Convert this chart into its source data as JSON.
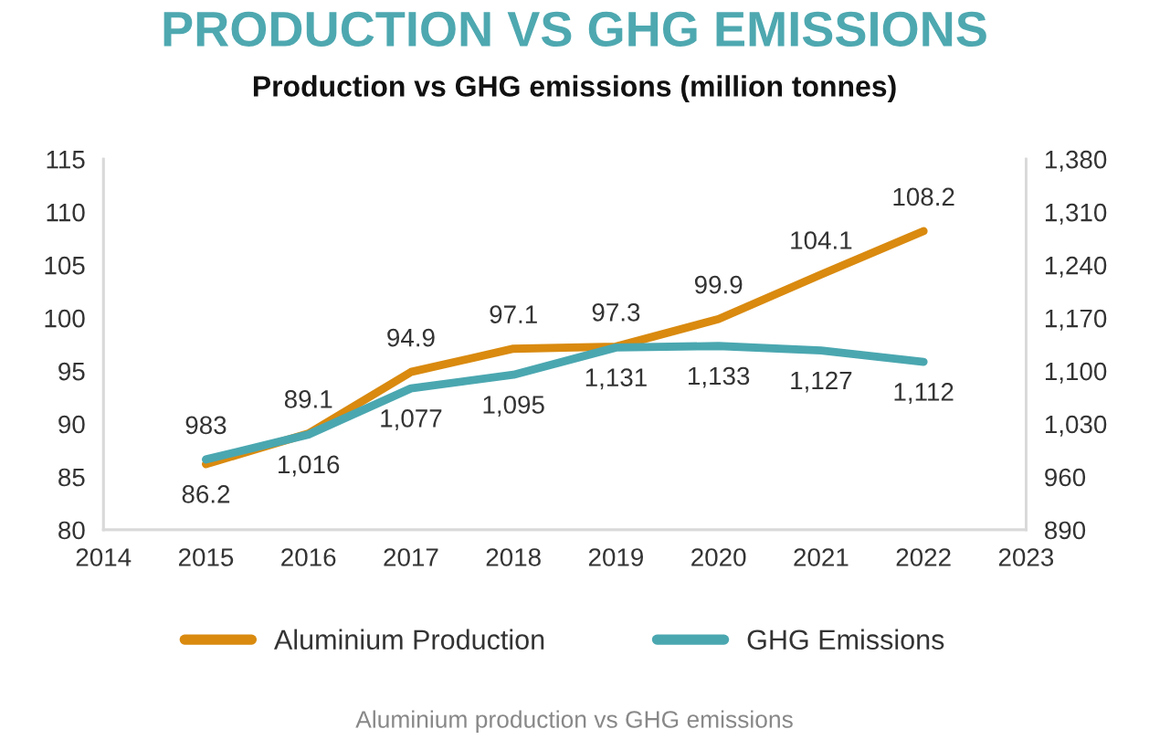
{
  "chart_data": {
    "type": "line",
    "title": "PRODUCTION VS GHG EMISSIONS",
    "subtitle": "Production vs GHG emissions (million tonnes)",
    "x": [
      2015,
      2016,
      2017,
      2018,
      2019,
      2020,
      2021,
      2022
    ],
    "series": [
      {
        "name": "Aluminium Production",
        "color": "#d98a0f",
        "values": [
          86.2,
          89.1,
          94.9,
          97.1,
          97.3,
          99.9,
          104.1,
          108.2
        ],
        "value_labels": [
          "86.2",
          "89.1",
          "94.9",
          "97.1",
          "97.3",
          "99.9",
          "104.1",
          "108.2"
        ]
      },
      {
        "name": "GHG Emissions",
        "color": "#4aa7b0",
        "axis": "y2",
        "values": [
          983,
          1016,
          1077,
          1095,
          1131,
          1133,
          1127,
          1112
        ],
        "value_labels": [
          "983",
          "1,016",
          "1,077",
          "1,095",
          "1,131",
          "1,133",
          "1,127",
          "1,112"
        ]
      }
    ],
    "xlim": [
      2014,
      2023
    ],
    "xticks": [
      2014,
      2015,
      2016,
      2017,
      2018,
      2019,
      2020,
      2021,
      2022,
      2023
    ],
    "ylim": [
      80,
      115
    ],
    "yticks": [
      80,
      85,
      90,
      95,
      100,
      105,
      110,
      115
    ],
    "y2lim": [
      890,
      1380
    ],
    "y2ticks": [
      {
        "value": 890,
        "label": "890"
      },
      {
        "value": 960,
        "label": "960"
      },
      {
        "value": 1030,
        "label": "1,030"
      },
      {
        "value": 1100,
        "label": "1,100"
      },
      {
        "value": 1170,
        "label": "1,170"
      },
      {
        "value": 1240,
        "label": "1,240"
      },
      {
        "value": 1310,
        "label": "1,310"
      },
      {
        "value": 1380,
        "label": "1,380"
      }
    ],
    "legend": "bottom",
    "marker": "none",
    "line_style": "solid",
    "annotations": [
      "Aluminium production vs GHG emissions"
    ]
  }
}
